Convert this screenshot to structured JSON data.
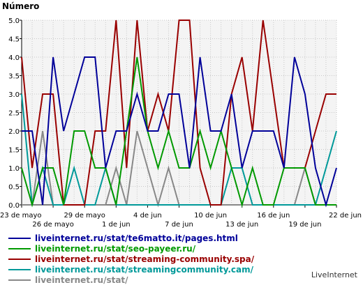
{
  "chart_data": {
    "type": "line",
    "ylabel": "Número",
    "ylim": [
      0,
      5
    ],
    "yticks": [
      "0.0",
      "0.5",
      "1.0",
      "1.5",
      "2.0",
      "2.5",
      "3.0",
      "3.5",
      "4.0",
      "4.5",
      "5.0"
    ],
    "x": [
      "23 May",
      "24 May",
      "25 May",
      "26 May",
      "27 May",
      "28 May",
      "29 May",
      "30 May",
      "31 May",
      "1 Jun",
      "2 Jun",
      "3 Jun",
      "4 Jun",
      "5 Jun",
      "6 Jun",
      "7 Jun",
      "8 Jun",
      "9 Jun",
      "10 Jun",
      "11 Jun",
      "12 Jun",
      "13 Jun",
      "14 Jun",
      "15 Jun",
      "16 Jun",
      "17 Jun",
      "18 Jun",
      "19 Jun",
      "20 Jun",
      "21 Jun",
      "22 Jun"
    ],
    "xticks": [
      {
        "index": 0,
        "label": "23 de mayo",
        "row": 1
      },
      {
        "index": 3,
        "label": "26 de mayo",
        "row": 2
      },
      {
        "index": 6,
        "label": "29 de mayo",
        "row": 1
      },
      {
        "index": 9,
        "label": "1 de jun",
        "row": 2
      },
      {
        "index": 12,
        "label": "4 de jun",
        "row": 1
      },
      {
        "index": 15,
        "label": "7 de jun",
        "row": 2
      },
      {
        "index": 18,
        "label": "10 de jun",
        "row": 1
      },
      {
        "index": 21,
        "label": "13 de jun",
        "row": 2
      },
      {
        "index": 24,
        "label": "16 de jun",
        "row": 1
      },
      {
        "index": 27,
        "label": "19 de jun",
        "row": 2
      },
      {
        "index": 30,
        "label": "22 de jun",
        "row": 1
      }
    ],
    "grid": true,
    "series": [
      {
        "name": "liveinternet.ru/stat/te6matto.it/pages.html",
        "color": "#000099",
        "values": [
          2,
          2,
          0,
          4,
          2,
          3,
          4,
          4,
          1,
          2,
          2,
          3,
          2,
          2,
          3,
          3,
          1,
          4,
          2,
          2,
          3,
          1,
          2,
          2,
          2,
          1,
          4,
          3,
          1,
          0,
          1
        ]
      },
      {
        "name": "liveinternet.ru/stat/seo-payeer.ru/",
        "color": "#009900",
        "values": [
          1,
          0,
          1,
          1,
          0,
          2,
          2,
          1,
          1,
          0,
          2,
          4,
          2,
          1,
          2,
          1,
          1,
          2,
          1,
          2,
          1,
          0,
          1,
          0,
          0,
          1,
          1,
          1,
          0,
          0,
          0
        ]
      },
      {
        "name": "liveinternet.ru/stat/streaming-community.spa/",
        "color": "#990000",
        "values": [
          4,
          1,
          3,
          3,
          0,
          0,
          0,
          2,
          2,
          5,
          1,
          5,
          2,
          3,
          2,
          5,
          5,
          1,
          0,
          0,
          3,
          4,
          2,
          5,
          3,
          1,
          1,
          1,
          2,
          3,
          3
        ]
      },
      {
        "name": "liveinternet.ru/stat/streamingcommunity.cam/",
        "color": "#009999",
        "values": [
          3,
          0,
          1,
          0,
          0,
          1,
          0,
          0,
          1,
          0,
          0,
          0,
          0,
          0,
          0,
          0,
          0,
          0,
          0,
          0,
          1,
          1,
          0,
          0,
          0,
          0,
          0,
          0,
          0,
          1,
          2
        ]
      },
      {
        "name": "liveinternet.ru/stat/",
        "color": "#888888",
        "values": [
          0,
          0,
          2,
          0,
          0,
          0,
          0,
          0,
          0,
          1,
          0,
          2,
          1,
          0,
          1,
          0,
          0,
          0,
          0,
          0,
          0,
          0,
          0,
          0,
          0,
          0,
          0,
          1,
          0,
          0,
          0
        ]
      }
    ]
  },
  "footer": {
    "brand": "LiveInternet"
  }
}
